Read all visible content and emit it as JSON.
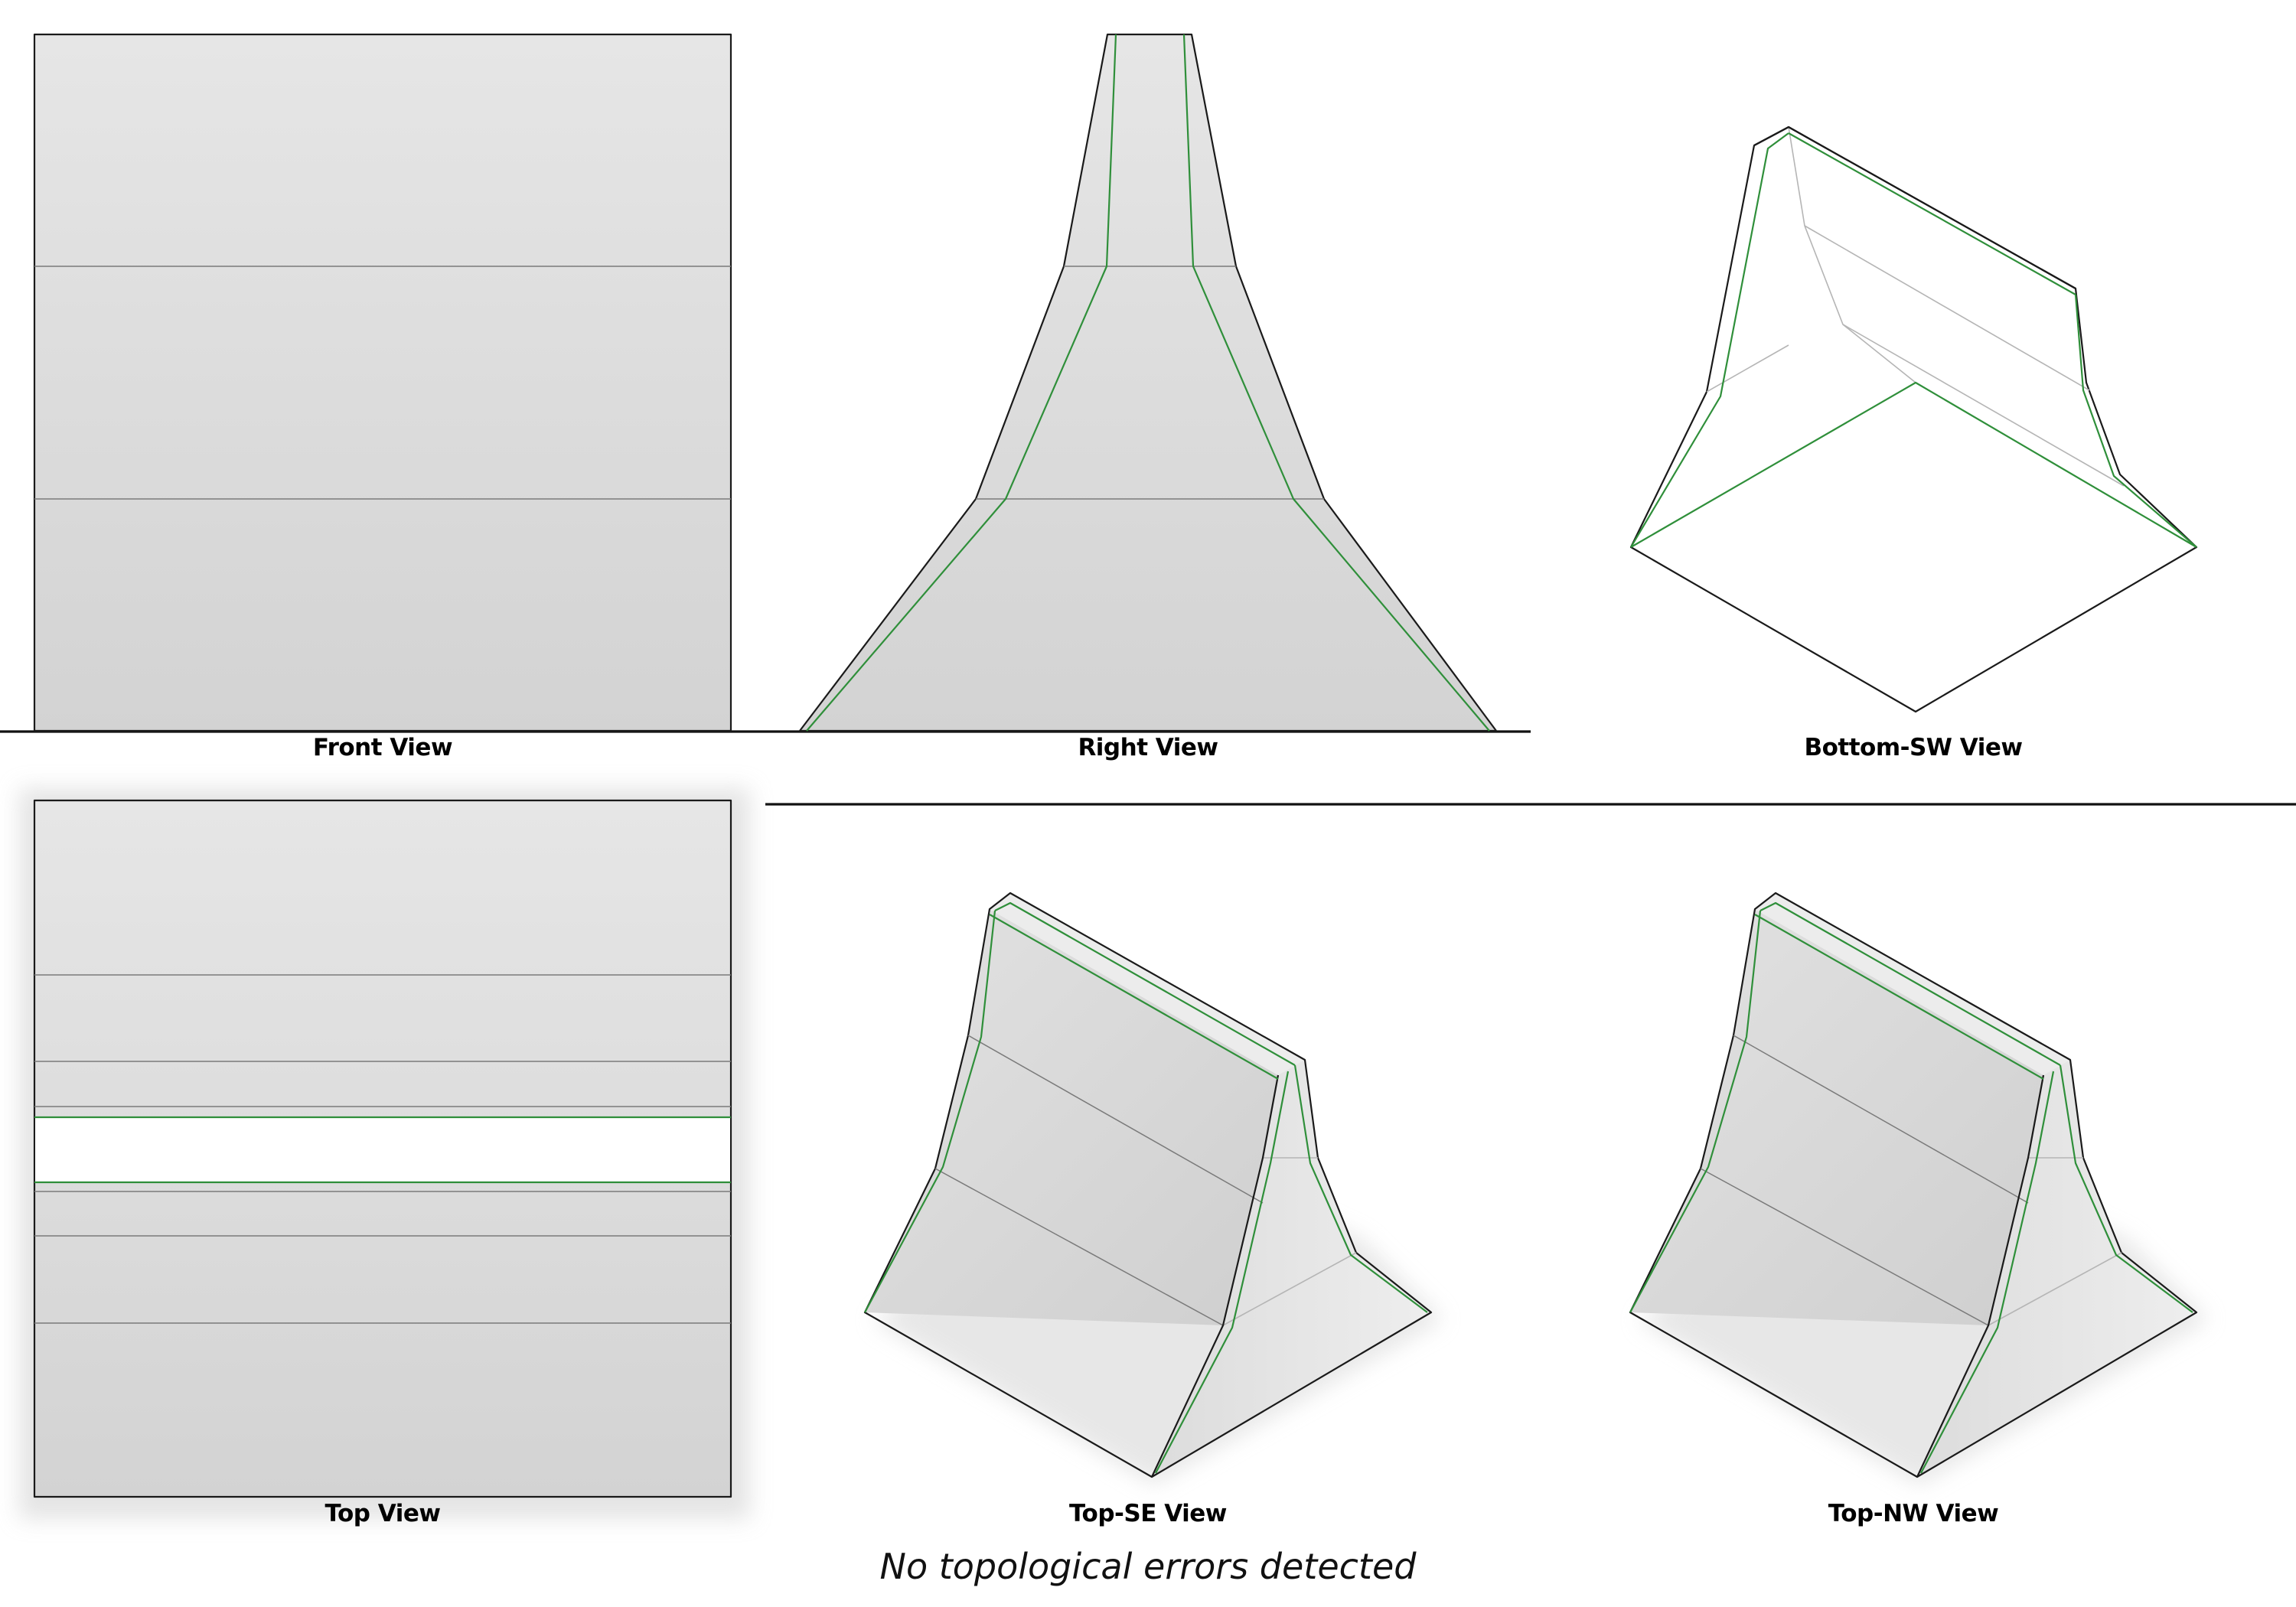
{
  "views": {
    "front": {
      "label": "Front View"
    },
    "right": {
      "label": "Right View"
    },
    "bottom_sw": {
      "label": "Bottom-SW View"
    },
    "top": {
      "label": "Top View"
    },
    "top_se": {
      "label": "Top-SE View"
    },
    "top_nw": {
      "label": "Top-NW View"
    }
  },
  "status": {
    "message": "No topological errors detected"
  },
  "colors": {
    "face_fill": "#d6d6d6",
    "edge": "#1a1a1a",
    "seam": "#7a7a7a",
    "tangent_edge": "#2f8f3a",
    "background": "#ffffff"
  }
}
